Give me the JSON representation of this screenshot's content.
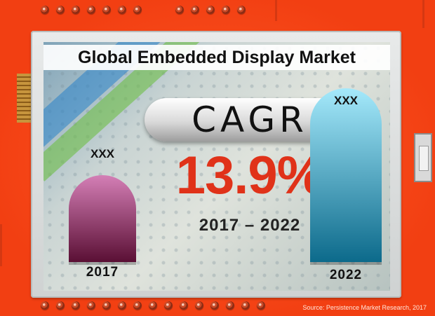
{
  "title": "Global Embedded Display Market",
  "cagr_label": "CAGR",
  "cagr_value": "13.9%",
  "period": "2017 – 2022",
  "source": "Source: Persistence Market Research, 2017",
  "colors": {
    "board": "#f23f12",
    "rate_text": "#e03219",
    "bar_2017_top": "#d47fb6",
    "bar_2017_bottom": "#5a0f34",
    "bar_2022_top": "#a5e9fb",
    "bar_2022_bottom": "#0c6a8b"
  },
  "chart_data": {
    "type": "bar",
    "categories": [
      "2017",
      "2022"
    ],
    "value_labels": [
      "XXX",
      "XXX"
    ],
    "relative_heights": [
      0.5,
      1.0
    ],
    "title": "Global Embedded Display Market",
    "xlabel": "",
    "ylabel": "",
    "grid": false,
    "legend": "none"
  }
}
